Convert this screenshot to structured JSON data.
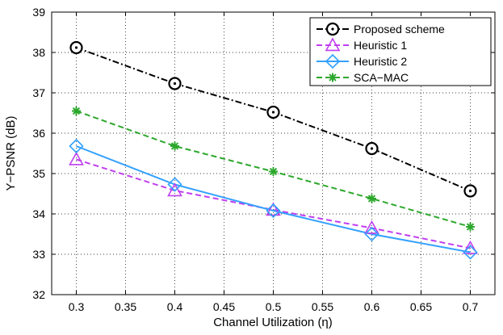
{
  "chart_data": {
    "type": "line",
    "title": "",
    "xlabel": "Channel Utilization (η)",
    "ylabel": "Y−PSNR (dB)",
    "xlim": [
      0.275,
      0.725
    ],
    "ylim": [
      32,
      39
    ],
    "x_ticks": [
      "0.3",
      "0.35",
      "0.4",
      "0.45",
      "0.5",
      "0.55",
      "0.6",
      "0.65",
      "0.7"
    ],
    "y_ticks": [
      "32",
      "33",
      "34",
      "35",
      "36",
      "37",
      "38",
      "39"
    ],
    "grid": true,
    "legend_position": "top-right",
    "x": [
      0.3,
      0.4,
      0.5,
      0.6,
      0.7
    ],
    "series": [
      {
        "name": "Proposed scheme",
        "values": [
          38.12,
          37.23,
          36.52,
          35.62,
          34.57
        ],
        "color": "#000000",
        "line": "dashdot",
        "marker": "circle-dot"
      },
      {
        "name": "Heuristic 1",
        "values": [
          35.35,
          34.58,
          34.1,
          33.65,
          33.15
        ],
        "color": "#c03ff0",
        "line": "dashed",
        "marker": "triangle"
      },
      {
        "name": "Heuristic 2",
        "values": [
          35.68,
          34.73,
          34.08,
          33.5,
          33.05
        ],
        "color": "#33a1ff",
        "line": "solid",
        "marker": "diamond"
      },
      {
        "name": "SCA−MAC",
        "values": [
          36.55,
          35.68,
          35.05,
          34.38,
          33.68
        ],
        "color": "#2da82d",
        "line": "dashed",
        "marker": "asterisk"
      }
    ]
  }
}
